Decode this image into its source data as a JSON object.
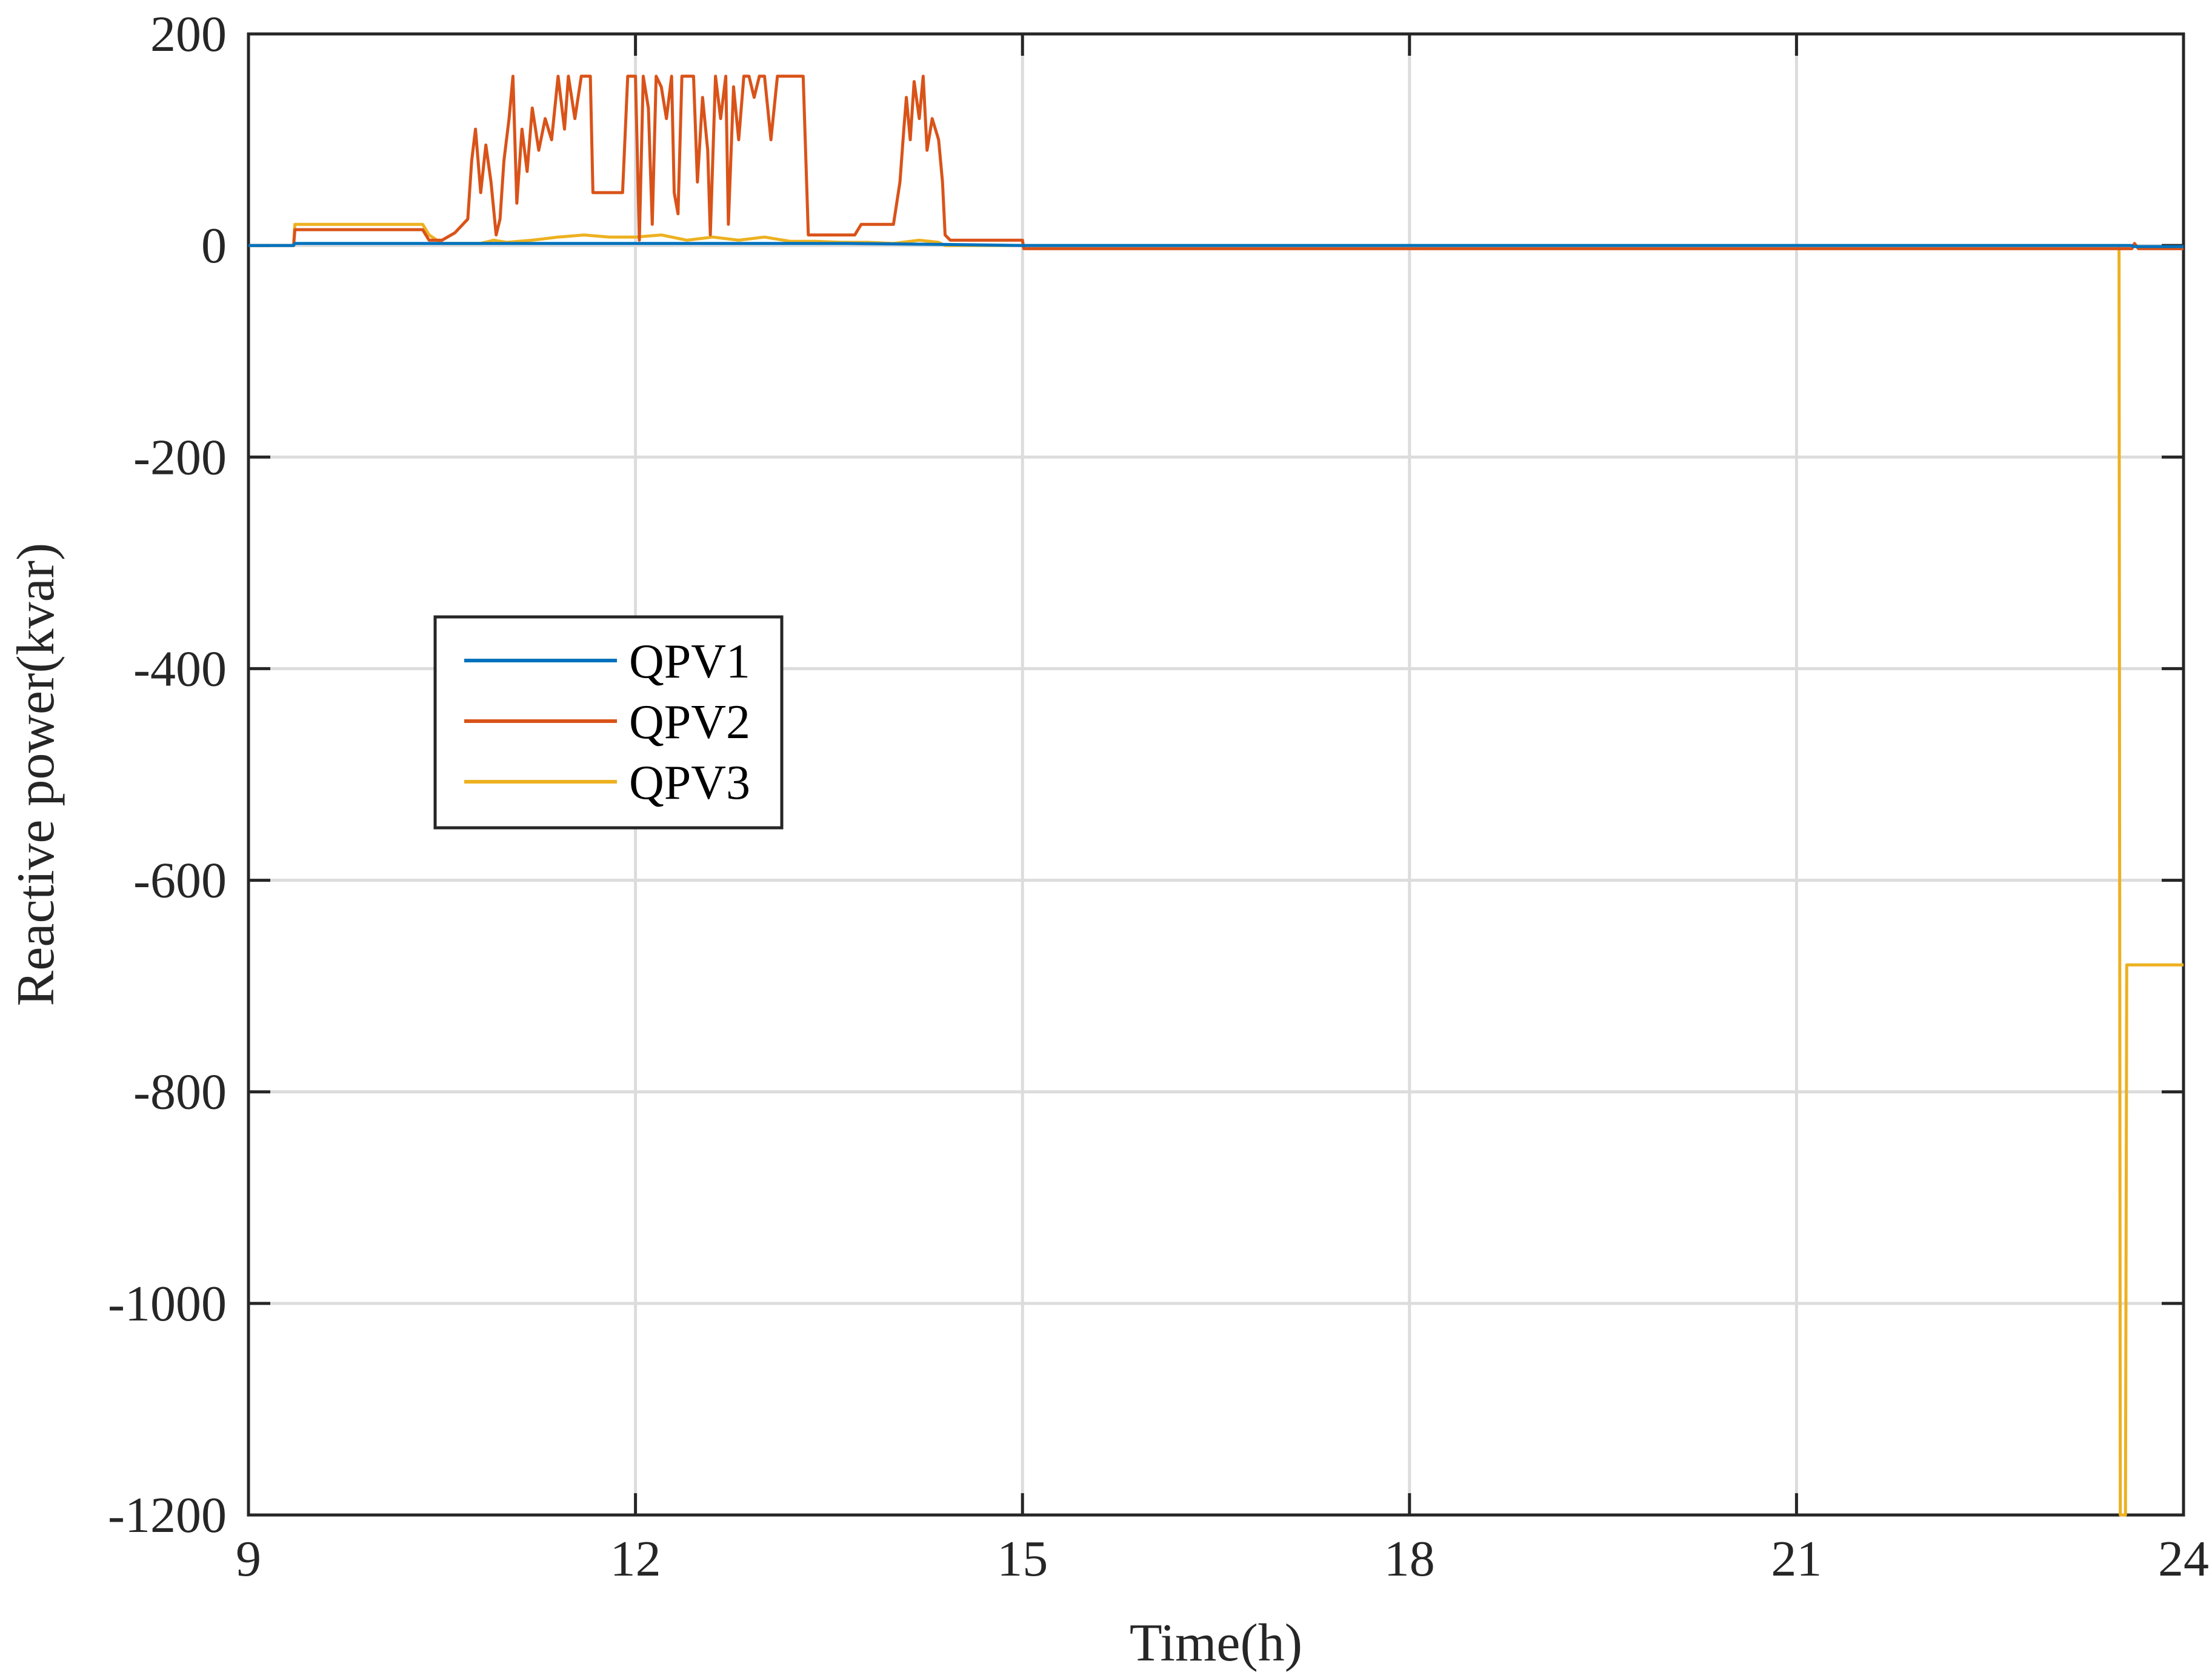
{
  "chart_data": {
    "type": "line",
    "xlabel": "Time(h)",
    "ylabel": "Reactive power(kvar)",
    "xlim": [
      9,
      24
    ],
    "ylim": [
      -1200,
      200
    ],
    "xticks": [
      9,
      12,
      15,
      18,
      21,
      24
    ],
    "yticks": [
      200,
      0,
      -200,
      -400,
      -600,
      -800,
      -1000,
      -1200
    ],
    "grid": true,
    "legend_position": "middle-left",
    "series": [
      {
        "name": "QPV1",
        "color": "#0072BD",
        "points": [
          [
            9,
            0
          ],
          [
            9.35,
            0
          ],
          [
            9.36,
            2
          ],
          [
            13.6,
            2
          ],
          [
            14.4,
            1
          ],
          [
            15,
            0
          ],
          [
            23.6,
            0
          ],
          [
            23.61,
            -1
          ],
          [
            24,
            -1
          ]
        ]
      },
      {
        "name": "QPV2",
        "color": "#D95319",
        "points": [
          [
            9,
            0
          ],
          [
            9.35,
            0
          ],
          [
            9.36,
            15
          ],
          [
            10.35,
            15
          ],
          [
            10.4,
            5
          ],
          [
            10.5,
            5
          ],
          [
            10.6,
            12
          ],
          [
            10.7,
            25
          ],
          [
            10.73,
            80
          ],
          [
            10.76,
            110
          ],
          [
            10.8,
            50
          ],
          [
            10.84,
            95
          ],
          [
            10.88,
            60
          ],
          [
            10.92,
            10
          ],
          [
            10.95,
            25
          ],
          [
            10.98,
            80
          ],
          [
            11.02,
            120
          ],
          [
            11.05,
            160
          ],
          [
            11.08,
            40
          ],
          [
            11.12,
            110
          ],
          [
            11.16,
            70
          ],
          [
            11.2,
            130
          ],
          [
            11.25,
            90
          ],
          [
            11.3,
            120
          ],
          [
            11.35,
            100
          ],
          [
            11.4,
            160
          ],
          [
            11.45,
            110
          ],
          [
            11.48,
            160
          ],
          [
            11.53,
            120
          ],
          [
            11.58,
            160
          ],
          [
            11.62,
            160
          ],
          [
            11.65,
            160
          ],
          [
            11.67,
            50
          ],
          [
            11.9,
            50
          ],
          [
            11.94,
            160
          ],
          [
            12.0,
            160
          ],
          [
            12.03,
            5
          ],
          [
            12.06,
            160
          ],
          [
            12.1,
            130
          ],
          [
            12.13,
            20
          ],
          [
            12.16,
            160
          ],
          [
            12.2,
            150
          ],
          [
            12.24,
            120
          ],
          [
            12.28,
            160
          ],
          [
            12.3,
            50
          ],
          [
            12.33,
            30
          ],
          [
            12.36,
            160
          ],
          [
            12.4,
            160
          ],
          [
            12.45,
            160
          ],
          [
            12.48,
            60
          ],
          [
            12.52,
            140
          ],
          [
            12.56,
            90
          ],
          [
            12.58,
            10
          ],
          [
            12.62,
            160
          ],
          [
            12.66,
            120
          ],
          [
            12.7,
            160
          ],
          [
            12.72,
            20
          ],
          [
            12.76,
            150
          ],
          [
            12.8,
            100
          ],
          [
            12.84,
            160
          ],
          [
            12.88,
            160
          ],
          [
            12.92,
            140
          ],
          [
            12.96,
            160
          ],
          [
            13.0,
            160
          ],
          [
            13.05,
            100
          ],
          [
            13.1,
            160
          ],
          [
            13.15,
            160
          ],
          [
            13.3,
            160
          ],
          [
            13.34,
            10
          ],
          [
            13.7,
            10
          ],
          [
            13.75,
            20
          ],
          [
            13.85,
            20
          ],
          [
            14.0,
            20
          ],
          [
            14.05,
            60
          ],
          [
            14.08,
            110
          ],
          [
            14.1,
            140
          ],
          [
            14.13,
            100
          ],
          [
            14.16,
            155
          ],
          [
            14.2,
            120
          ],
          [
            14.23,
            160
          ],
          [
            14.26,
            90
          ],
          [
            14.3,
            120
          ],
          [
            14.35,
            100
          ],
          [
            14.38,
            60
          ],
          [
            14.4,
            10
          ],
          [
            14.44,
            5
          ],
          [
            14.5,
            5
          ],
          [
            15,
            5
          ],
          [
            15.01,
            -3
          ],
          [
            23.6,
            -3
          ],
          [
            23.62,
            2
          ],
          [
            23.65,
            -3
          ],
          [
            24,
            -3
          ]
        ]
      },
      {
        "name": "QPV3",
        "color": "#EDB120",
        "points": [
          [
            9,
            0
          ],
          [
            9.35,
            0
          ],
          [
            9.36,
            20
          ],
          [
            10.35,
            20
          ],
          [
            10.4,
            10
          ],
          [
            10.5,
            2
          ],
          [
            10.8,
            2
          ],
          [
            10.9,
            5
          ],
          [
            11.0,
            3
          ],
          [
            11.2,
            5
          ],
          [
            11.4,
            8
          ],
          [
            11.6,
            10
          ],
          [
            11.8,
            8
          ],
          [
            12.0,
            8
          ],
          [
            12.2,
            10
          ],
          [
            12.4,
            5
          ],
          [
            12.6,
            8
          ],
          [
            12.8,
            5
          ],
          [
            13.0,
            8
          ],
          [
            13.2,
            4
          ],
          [
            13.4,
            4
          ],
          [
            13.6,
            3
          ],
          [
            13.8,
            3
          ],
          [
            14.0,
            2
          ],
          [
            14.2,
            5
          ],
          [
            14.35,
            3
          ],
          [
            14.4,
            0
          ],
          [
            23.5,
            0
          ],
          [
            23.51,
            -1200
          ],
          [
            23.55,
            -1200
          ],
          [
            23.56,
            -680
          ],
          [
            24,
            -680
          ]
        ]
      }
    ]
  }
}
